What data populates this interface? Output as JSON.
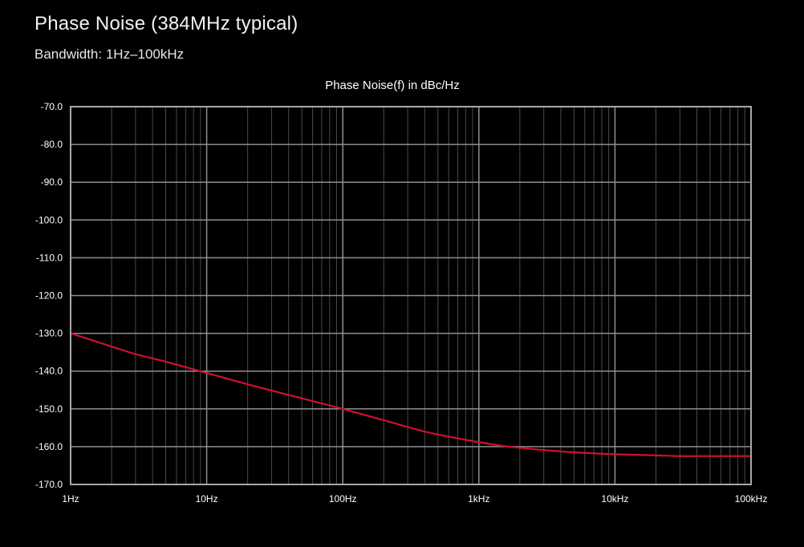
{
  "page": {
    "title": "Phase Noise (384MHz typical)",
    "subtitle": "Bandwidth: 1Hz–100kHz"
  },
  "chart_data": {
    "type": "line",
    "title": "Phase Noise(f) in dBc/Hz",
    "xlabel": "",
    "ylabel": "",
    "x_scale": "log",
    "xlim": [
      1,
      100000
    ],
    "ylim": [
      -170,
      -70
    ],
    "grid": true,
    "legend": "none",
    "x_ticks": [
      {
        "value": 1,
        "label": "1Hz"
      },
      {
        "value": 10,
        "label": "10Hz"
      },
      {
        "value": 100,
        "label": "100Hz"
      },
      {
        "value": 1000,
        "label": "1kHz"
      },
      {
        "value": 10000,
        "label": "10kHz"
      },
      {
        "value": 100000,
        "label": "100kHz"
      }
    ],
    "y_ticks": [
      {
        "value": -70,
        "label": "-70.0"
      },
      {
        "value": -80,
        "label": "-80.0"
      },
      {
        "value": -90,
        "label": "-90.0"
      },
      {
        "value": -100,
        "label": "-100.0"
      },
      {
        "value": -110,
        "label": "-110.0"
      },
      {
        "value": -120,
        "label": "-120.0"
      },
      {
        "value": -130,
        "label": "-130.0"
      },
      {
        "value": -140,
        "label": "-140.0"
      },
      {
        "value": -150,
        "label": "-150.0"
      },
      {
        "value": -160,
        "label": "-160.0"
      },
      {
        "value": -170,
        "label": "-170.0"
      }
    ],
    "series": [
      {
        "color": "#d0102c",
        "x": [
          1,
          2,
          3,
          5,
          10,
          20,
          50,
          100,
          200,
          400,
          700,
          1000,
          1500,
          2000,
          3000,
          5000,
          10000,
          20000,
          30000,
          50000,
          100000
        ],
        "y": [
          -130,
          -133.5,
          -135.5,
          -137.5,
          -140.5,
          -143.5,
          -147.2,
          -150,
          -153,
          -156,
          -157.8,
          -158.8,
          -159.8,
          -160.3,
          -160.9,
          -161.5,
          -162,
          -162.3,
          -162.5,
          -162.5,
          -162.5
        ]
      }
    ]
  },
  "colors": {
    "background": "#000000",
    "grid_major": "#8f8f8f",
    "grid_minor": "#4a4a4a",
    "axis_frame": "#a8a8a8",
    "text": "#ffffff",
    "series_line": "#d0102c"
  }
}
